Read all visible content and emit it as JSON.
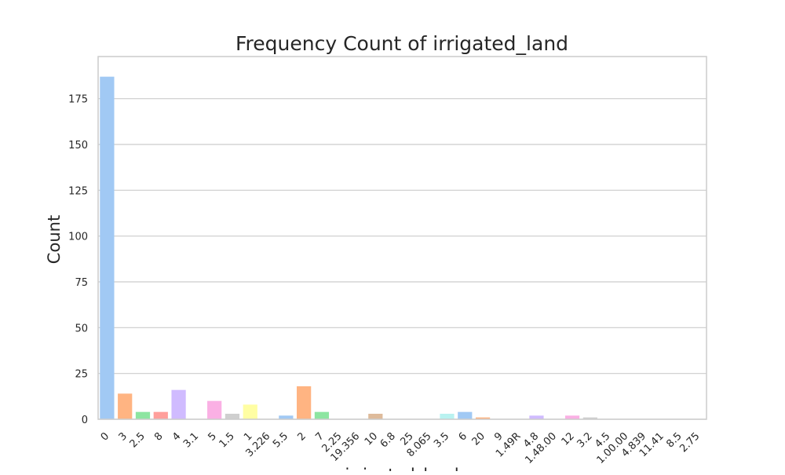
{
  "chart_data": {
    "type": "bar",
    "title": "Frequency Count of irrigated_land",
    "xlabel": "irrigated_land",
    "ylabel": "Count",
    "ylim": [
      0,
      198
    ],
    "yticks": [
      0,
      25,
      50,
      75,
      100,
      125,
      150,
      175
    ],
    "grid": true,
    "legend": "none",
    "categories": [
      "0",
      "3",
      "2.5",
      "8",
      "4",
      "3.1",
      "5",
      "1.5",
      "1",
      "3.226",
      "5.5",
      "2",
      "7",
      "2.25",
      "19.356",
      "10",
      "6.8",
      "25",
      "8.065",
      "3.5",
      "6",
      "20",
      "9",
      "1.49R",
      "4.8",
      "1.48.00",
      "12",
      "3.2",
      "4.5",
      "1.00.00",
      "4.839",
      "11.41",
      "8.5",
      "2.75"
    ],
    "values": [
      187,
      14,
      4,
      4,
      16,
      0,
      10,
      3,
      8,
      0,
      2,
      18,
      4,
      0,
      0,
      3,
      0,
      0,
      0,
      3,
      4,
      1,
      0,
      0,
      2,
      0,
      2,
      1,
      0,
      0,
      0,
      0,
      0,
      0
    ],
    "colors": [
      "#a1c9f4",
      "#ffb482",
      "#8de5a1",
      "#ff9f9b",
      "#d0bbff",
      "#debb9b",
      "#fab0e4",
      "#cfcfcf",
      "#fffea3",
      "#b9f2f0"
    ],
    "grid_color": "#cccccc",
    "frame_color": "#cccccc"
  }
}
